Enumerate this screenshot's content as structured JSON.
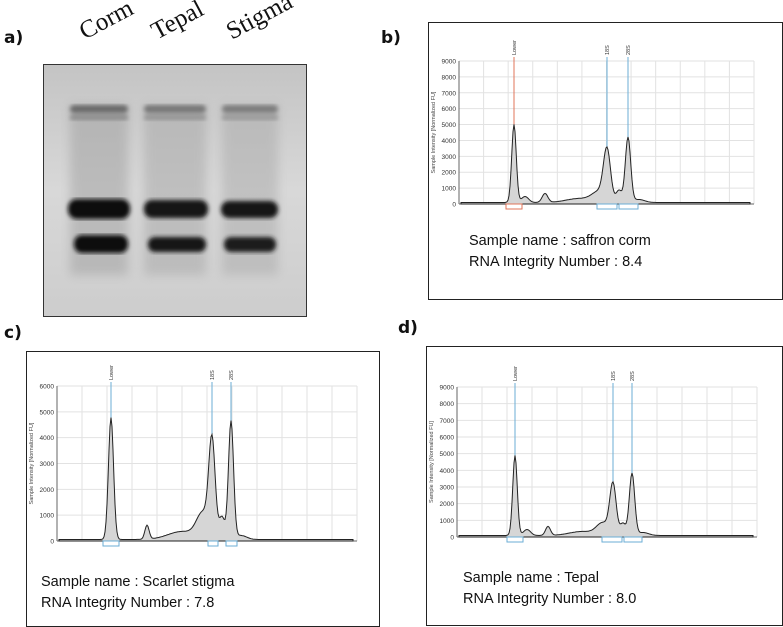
{
  "panel_a": {
    "label": "a)",
    "lanes": [
      "Corm",
      "Tepal",
      "Stigma"
    ]
  },
  "panel_b": {
    "label": "b)",
    "y_axis_label": "Sample Intensity [Normalized FU]",
    "y_ticks": [
      "9000",
      "8000",
      "7000",
      "6000",
      "5000",
      "4000",
      "3000",
      "2000",
      "1000",
      "0"
    ],
    "peak_labels": [
      "Lower",
      "18S",
      "28S"
    ],
    "sample_line": "Sample name : saffron corm",
    "rin_line": "RNA Integrity Number : 8.4"
  },
  "panel_c": {
    "label": "c)",
    "y_axis_label": "Sample Intensity [Normalized FU]",
    "y_ticks": [
      "6000",
      "5000",
      "4000",
      "3000",
      "2000",
      "1000",
      "0"
    ],
    "peak_labels": [
      "Lower",
      "18S",
      "28S"
    ],
    "sample_line": "Sample name : Scarlet stigma",
    "rin_line": "RNA Integrity Number : 7.8"
  },
  "panel_d": {
    "label": "d)",
    "y_axis_label": "Sample Intensity [Normalized FU]",
    "y_ticks": [
      "9000",
      "8000",
      "7000",
      "6000",
      "5000",
      "4000",
      "3000",
      "2000",
      "1000",
      "0"
    ],
    "peak_labels": [
      "Lower",
      "18S",
      "28S"
    ],
    "sample_line": "Sample name : Tepal",
    "rin_line": "RNA Integrity Number : 8.0"
  }
}
